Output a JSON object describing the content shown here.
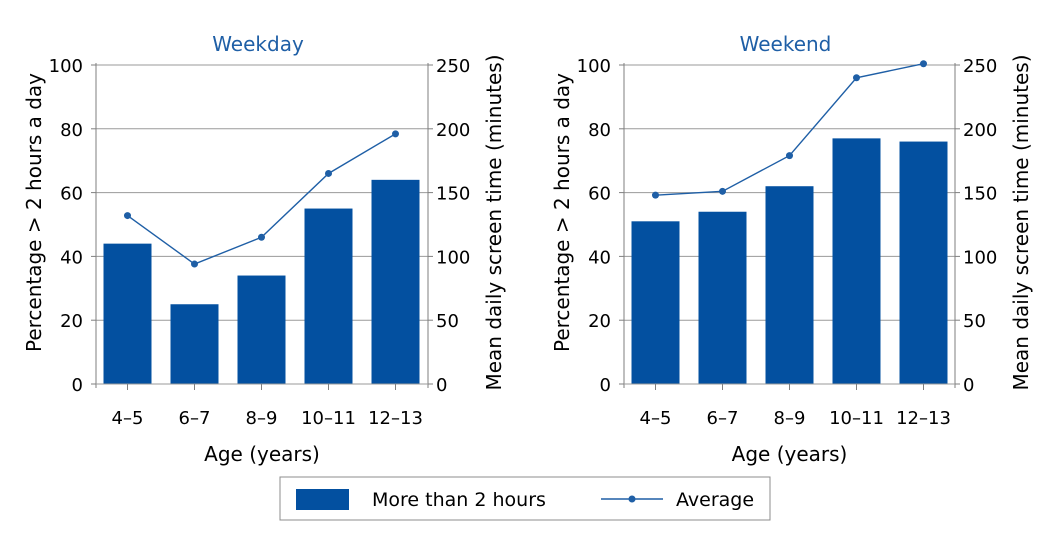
{
  "chart_data": [
    {
      "type": "bar+line",
      "title": "Weekday",
      "xlabel": "Age (years)",
      "ylabel": "Percentage > 2 hours a day",
      "y2label": "Mean daily screen time (minutes)",
      "categories": [
        "4–5",
        "6–7",
        "8–9",
        "10–11",
        "12–13"
      ],
      "ylim": [
        0,
        100
      ],
      "yticks": [
        0,
        20,
        40,
        60,
        80,
        100
      ],
      "y2lim": [
        0,
        250
      ],
      "y2ticks": [
        0,
        50,
        100,
        150,
        200,
        250
      ],
      "grid": "horizontal",
      "series": [
        {
          "name": "More than 2 hours",
          "kind": "bar",
          "axis": "left",
          "values": [
            44,
            25,
            34,
            55,
            64
          ]
        },
        {
          "name": "Average",
          "kind": "line",
          "axis": "right",
          "values": [
            132,
            94,
            115,
            165,
            196
          ]
        }
      ]
    },
    {
      "type": "bar+line",
      "title": "Weekend",
      "xlabel": "Age (years)",
      "ylabel": "Percentage > 2 hours a day",
      "y2label": "Mean daily screen time (minutes)",
      "categories": [
        "4–5",
        "6–7",
        "8–9",
        "10–11",
        "12–13"
      ],
      "ylim": [
        0,
        100
      ],
      "yticks": [
        0,
        20,
        40,
        60,
        80,
        100
      ],
      "y2lim": [
        0,
        250
      ],
      "y2ticks": [
        0,
        50,
        100,
        150,
        200,
        250
      ],
      "grid": "horizontal",
      "series": [
        {
          "name": "More than 2 hours",
          "kind": "bar",
          "axis": "left",
          "values": [
            51,
            54,
            62,
            77,
            76
          ]
        },
        {
          "name": "Average",
          "kind": "line",
          "axis": "right",
          "values": [
            148,
            151,
            179,
            240,
            251
          ]
        }
      ]
    }
  ],
  "legend": {
    "position": "bottom-center",
    "items": [
      {
        "label": "More than 2 hours",
        "kind": "bar"
      },
      {
        "label": "Average",
        "kind": "line"
      }
    ]
  },
  "colors": {
    "bar": "#0350a0",
    "line": "#1f5fa6",
    "title": "#1f5fa6",
    "grid": "#9a9a9a",
    "axis": "#7f7f7f"
  }
}
